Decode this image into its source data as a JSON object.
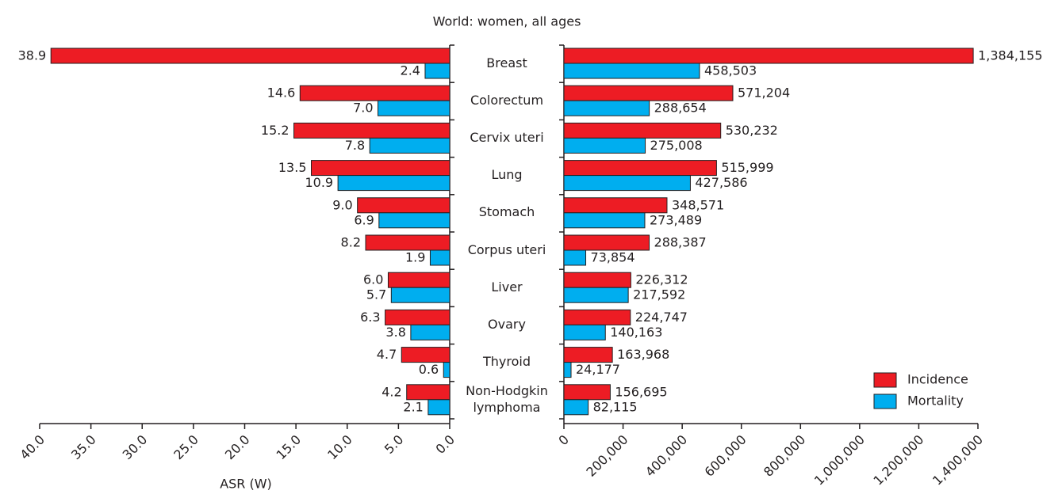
{
  "chart_data": [
    {
      "type": "bar",
      "orientation": "horizontal",
      "title": "World: women, all ages",
      "categories": [
        "Breast",
        "Colorectum",
        "Cervix uteri",
        "Lung",
        "Stomach",
        "Corpus uteri",
        "Liver",
        "Ovary",
        "Thyroid",
        "Non-Hodgkin lymphoma"
      ],
      "xlabel": "ASR (W)",
      "xlim": [
        40,
        0
      ],
      "xticks": [
        {
          "value": 40,
          "label": "40.0"
        },
        {
          "value": 35,
          "label": "35.0"
        },
        {
          "value": 30,
          "label": "30.0"
        },
        {
          "value": 25,
          "label": "25.0"
        },
        {
          "value": 20,
          "label": "20.0"
        },
        {
          "value": 15,
          "label": "15.0"
        },
        {
          "value": 10,
          "label": "10.0"
        },
        {
          "value": 5,
          "label": "5.0"
        },
        {
          "value": 0,
          "label": "0.0"
        }
      ],
      "series": [
        {
          "color": "#ed1c24",
          "values": [
            38.9,
            14.6,
            15.2,
            13.5,
            9,
            8.2,
            6,
            6.3,
            4.7,
            4.2
          ],
          "value_labels": [
            "38.9",
            "14.6",
            "15.2",
            "13.5",
            "9.0",
            "8.2",
            "6.0",
            "6.3",
            "4.7",
            "4.2"
          ]
        },
        {
          "color": "#00aeef",
          "values": [
            2.4,
            7,
            7.8,
            10.9,
            6.9,
            1.9,
            5.7,
            3.8,
            0.6,
            2.1
          ],
          "value_labels": [
            "2.4",
            "7.0",
            "7.8",
            "10.9",
            "6.9",
            "1.9",
            "5.7",
            "3.8",
            "0.6",
            "2.1"
          ]
        }
      ]
    },
    {
      "type": "bar",
      "orientation": "horizontal",
      "xlim": [
        0,
        1400000
      ],
      "xticks": [
        0,
        {
          "value": 200000,
          "label": "200,000"
        },
        {
          "value": 400000,
          "label": "400,000"
        },
        {
          "value": 600000,
          "label": "600,000"
        },
        {
          "value": 800000,
          "label": "800,000"
        },
        {
          "value": 1000000,
          "label": "1,000,000"
        },
        {
          "value": 1200000,
          "label": "1,200,000"
        },
        {
          "value": 1400000,
          "label": "1,400,000"
        }
      ],
      "legend": "lower right",
      "series": [
        {
          "name": "Incidence",
          "color": "#ed1c24",
          "values": [
            1384155,
            571204,
            530232,
            515999,
            348571,
            288387,
            226312,
            224747,
            163968,
            156695
          ],
          "value_labels": [
            "1,384,155",
            "571,204",
            "530,232",
            "515,999",
            "348,571",
            "288,387",
            "226,312",
            "224,747",
            "163,968",
            "156,695"
          ]
        },
        {
          "name": "Mortality",
          "color": "#00aeef",
          "values": [
            458503,
            288654,
            275008,
            427586,
            273489,
            73854,
            217592,
            140163,
            24177,
            82115
          ],
          "value_labels": [
            "458,503",
            "288,654",
            "275,008",
            "427,586",
            "273,489",
            "73,854",
            "217,592",
            "140,163",
            "24,177",
            "82,115"
          ]
        }
      ]
    }
  ]
}
